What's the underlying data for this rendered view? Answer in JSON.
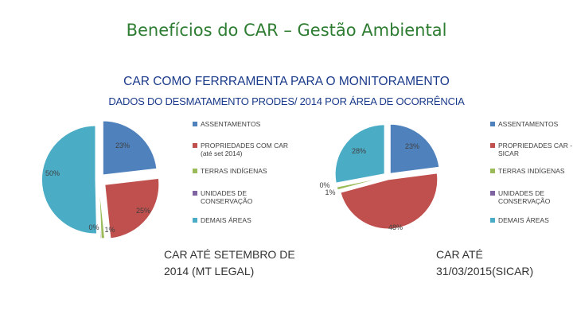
{
  "slide": {
    "title": "Benefícios do CAR –  Gestão Ambiental",
    "subtitle_1": "CAR COMO FERRRAMENTA PARA O MONITORAMENTO",
    "subtitle_2": "DADOS DO DESMATAMENTO PRODES/ 2014 POR ÁREA DE OCORRÊNCIA"
  },
  "chart_data": [
    {
      "type": "pie",
      "caption": "CAR ATÉ SETEMBRO DE 2014 (MT LEGAL)",
      "legend_position": "right",
      "slices": [
        {
          "name": "ASSENTAMENTOS",
          "value": 23,
          "label": "23%",
          "color": "#4f81bd"
        },
        {
          "name": "PROPRIEDADES COM CAR (até set 2014)",
          "value": 25,
          "label": "25%",
          "color": "#c0504d"
        },
        {
          "name": "TERRAS INDÍGENAS",
          "value": 1,
          "label": "1%",
          "color": "#9bbb59"
        },
        {
          "name": "UNIDADES DE CONSERVAÇÃO",
          "value": 0.3,
          "label": "0%",
          "color": "#8064a2"
        },
        {
          "name": "DEMAIS ÁREAS",
          "value": 50,
          "label": "50%",
          "color": "#4bacc6"
        }
      ]
    },
    {
      "type": "pie",
      "caption": "CAR ATÉ 31/03/2015(SICAR)",
      "legend_position": "right",
      "slices": [
        {
          "name": "ASSENTAMENTOS",
          "value": 23,
          "label": "23%",
          "color": "#4f81bd"
        },
        {
          "name": "PROPRIEDADES CAR - SICAR",
          "value": 48,
          "label": "48%",
          "color": "#c0504d"
        },
        {
          "name": "TERRAS INDÍGENAS",
          "value": 1,
          "label": "1%",
          "color": "#9bbb59"
        },
        {
          "name": "UNIDADES DE CONSERVAÇÃO",
          "value": 0.3,
          "label": "0%",
          "color": "#8064a2"
        },
        {
          "name": "DEMAIS ÁREAS",
          "value": 28,
          "label": "28%",
          "color": "#4bacc6"
        }
      ]
    }
  ]
}
